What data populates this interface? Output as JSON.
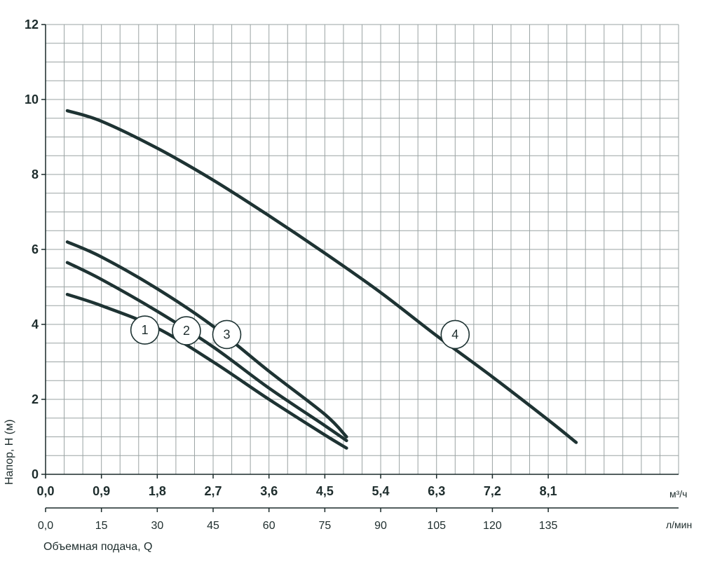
{
  "chart_data": {
    "type": "line",
    "xlabel": "Объемная подача, Q",
    "ylabel": "Напор, H (м)",
    "x_unit": "м³/ч",
    "x2_unit": "л/мин",
    "xlim": [
      0,
      10.2
    ],
    "ylim": [
      0,
      12
    ],
    "x_ticks": [
      "0,0",
      "0,9",
      "1,8",
      "2,7",
      "3,6",
      "4,5",
      "5,4",
      "6,3",
      "7,2",
      "8,1"
    ],
    "x_tick_values": [
      0,
      0.9,
      1.8,
      2.7,
      3.6,
      4.5,
      5.4,
      6.3,
      7.2,
      8.1
    ],
    "x2_ticks": [
      "0,0",
      "15",
      "30",
      "45",
      "60",
      "75",
      "90",
      "105",
      "120",
      "135"
    ],
    "y_ticks": [
      "0",
      "2",
      "4",
      "6",
      "8",
      "10",
      "12"
    ],
    "y_tick_values": [
      0,
      2,
      4,
      6,
      8,
      10,
      12
    ],
    "grid": true,
    "series": [
      {
        "name": "1",
        "x": [
          0.35,
          0.9,
          1.8,
          2.7,
          3.6,
          4.5,
          4.85
        ],
        "y": [
          4.8,
          4.5,
          3.9,
          3.0,
          2.0,
          1.05,
          0.7
        ]
      },
      {
        "name": "2",
        "x": [
          0.35,
          0.9,
          1.8,
          2.7,
          3.6,
          4.5,
          4.85
        ],
        "y": [
          5.65,
          5.2,
          4.35,
          3.4,
          2.3,
          1.3,
          0.9
        ]
      },
      {
        "name": "3",
        "x": [
          0.35,
          0.9,
          1.8,
          2.7,
          3.6,
          4.5,
          4.85
        ],
        "y": [
          6.2,
          5.8,
          4.95,
          3.95,
          2.75,
          1.6,
          1.0
        ]
      },
      {
        "name": "4",
        "x": [
          0.35,
          0.9,
          1.8,
          2.7,
          3.6,
          4.5,
          5.4,
          6.3,
          7.2,
          8.1,
          8.55
        ],
        "y": [
          9.7,
          9.42,
          8.7,
          7.85,
          6.9,
          5.9,
          4.85,
          3.7,
          2.6,
          1.45,
          0.85
        ]
      }
    ],
    "markers": [
      {
        "label": "1",
        "x": 1.6,
        "y": 3.85
      },
      {
        "label": "2",
        "x": 2.27,
        "y": 3.83
      },
      {
        "label": "3",
        "x": 2.92,
        "y": 3.73
      },
      {
        "label": "4",
        "x": 6.6,
        "y": 3.73
      }
    ]
  }
}
